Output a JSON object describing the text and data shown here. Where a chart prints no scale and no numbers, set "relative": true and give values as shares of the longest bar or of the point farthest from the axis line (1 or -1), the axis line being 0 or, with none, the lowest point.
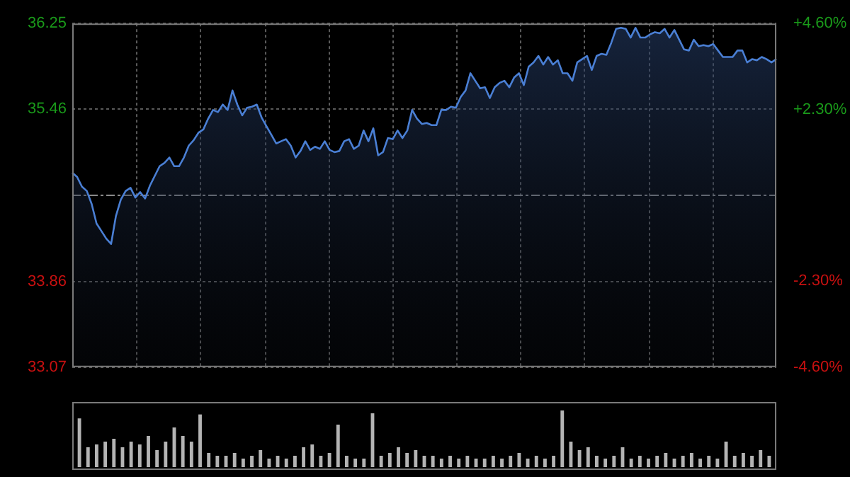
{
  "chart_data": [
    {
      "type": "area",
      "categories": [
        null,
        null,
        null,
        null,
        null,
        null,
        null,
        null,
        null,
        null,
        null,
        null,
        null,
        null,
        null,
        null,
        null,
        null,
        null,
        null,
        null,
        null,
        null,
        null,
        null,
        null,
        null,
        null,
        null,
        null,
        null,
        null,
        null,
        null,
        null,
        null,
        null,
        null,
        null,
        null,
        null,
        null,
        null,
        null,
        null,
        null,
        null,
        null,
        null,
        null,
        null,
        null,
        null,
        null,
        null,
        null,
        null,
        null,
        null,
        null,
        null,
        null,
        null,
        null,
        null,
        null,
        null,
        null,
        null,
        null,
        null,
        null,
        null,
        null,
        null,
        null,
        null,
        null,
        null,
        null,
        null,
        null,
        null,
        null,
        null,
        null,
        null,
        null,
        null,
        null,
        null,
        null,
        null,
        null,
        null,
        null,
        null,
        null,
        null,
        null,
        null,
        null,
        null,
        null,
        null,
        null,
        null,
        null,
        null,
        null,
        null,
        null,
        null,
        null,
        null,
        null,
        null,
        null,
        null,
        null,
        null,
        null,
        null,
        null,
        null,
        null,
        null,
        null,
        null,
        null,
        null,
        null,
        null,
        null,
        null,
        null,
        null,
        null,
        null,
        null,
        null,
        null,
        null,
        null,
        null,
        null
      ],
      "series": [
        {
          "color": "#4a7fd4",
          "values": [
            34.87,
            34.83,
            34.74,
            34.7,
            34.58,
            34.4,
            34.33,
            34.26,
            34.21,
            34.47,
            34.62,
            34.7,
            34.73,
            34.64,
            34.69,
            34.63,
            34.75,
            34.84,
            34.93,
            34.96,
            35.01,
            34.93,
            34.93,
            35.01,
            35.12,
            35.17,
            35.24,
            35.27,
            35.37,
            35.45,
            35.43,
            35.5,
            35.45,
            35.63,
            35.5,
            35.4,
            35.47,
            35.48,
            35.5,
            35.38,
            35.3,
            35.22,
            35.14,
            35.16,
            35.18,
            35.12,
            35.01,
            35.07,
            35.16,
            35.08,
            35.11,
            35.09,
            35.16,
            35.08,
            35.06,
            35.07,
            35.16,
            35.18,
            35.09,
            35.12,
            35.26,
            35.16,
            35.28,
            35.03,
            35.06,
            35.19,
            35.18,
            35.26,
            35.19,
            35.26,
            35.45,
            35.37,
            35.32,
            35.33,
            35.31,
            35.31,
            35.45,
            35.45,
            35.48,
            35.47,
            35.57,
            35.63,
            35.79,
            35.72,
            35.65,
            35.66,
            35.56,
            35.66,
            35.7,
            35.72,
            35.66,
            35.75,
            35.79,
            35.68,
            35.85,
            35.89,
            35.95,
            35.87,
            35.94,
            35.87,
            35.91,
            35.79,
            35.79,
            35.72,
            35.89,
            35.92,
            35.95,
            35.82,
            35.95,
            35.97,
            35.96,
            36.07,
            36.2,
            36.21,
            36.2,
            36.12,
            36.21,
            36.12,
            36.12,
            36.15,
            36.17,
            36.16,
            36.2,
            36.12,
            36.19,
            36.1,
            36.01,
            36.0,
            36.1,
            36.04,
            36.05,
            36.04,
            36.06,
            36.0,
            35.94,
            35.94,
            35.94,
            36.0,
            36.0,
            35.89,
            35.92,
            35.91,
            35.94,
            35.92,
            35.89,
            35.92
          ]
        }
      ],
      "ylim": [
        33.07,
        36.25
      ],
      "yticks": [
        33.07,
        33.86,
        35.46,
        36.25
      ],
      "y2lim": [
        -4.6,
        4.6
      ],
      "y2ticks": [
        {
          "value": -4.6,
          "label": "-4.60%"
        },
        {
          "value": -2.3,
          "label": "-2.30%"
        },
        {
          "value": 2.3,
          "label": "+2.30%"
        },
        {
          "value": 4.6,
          "label": "+4.60%"
        }
      ],
      "ref_lines": [
        {
          "axis": "y",
          "value": 34.66,
          "line_style": "dashed"
        }
      ],
      "grid": true,
      "marker": "none",
      "line_style": "solid",
      "tick_labels": "y",
      "legend": false
    },
    {
      "type": "bar",
      "relative": true,
      "categories": [
        null,
        null,
        null,
        null,
        null,
        null,
        null,
        null,
        null,
        null,
        null,
        null,
        null,
        null,
        null,
        null,
        null,
        null,
        null,
        null,
        null,
        null,
        null,
        null,
        null,
        null,
        null,
        null,
        null,
        null,
        null,
        null,
        null,
        null,
        null,
        null,
        null,
        null,
        null,
        null,
        null,
        null,
        null,
        null,
        null,
        null,
        null,
        null,
        null,
        null,
        null,
        null,
        null,
        null,
        null,
        null,
        null,
        null,
        null,
        null,
        null,
        null,
        null,
        null,
        null,
        null,
        null,
        null,
        null,
        null,
        null,
        null,
        null,
        null,
        null,
        null,
        null,
        null,
        null,
        null,
        null
      ],
      "series": [
        {
          "color": "#b4b4b4",
          "values": [
            0.86,
            0.35,
            0.4,
            0.45,
            0.5,
            0.35,
            0.45,
            0.4,
            0.55,
            0.3,
            0.45,
            0.7,
            0.55,
            0.45,
            0.93,
            0.25,
            0.2,
            0.2,
            0.25,
            0.15,
            0.2,
            0.3,
            0.15,
            0.2,
            0.15,
            0.2,
            0.35,
            0.4,
            0.2,
            0.25,
            0.75,
            0.2,
            0.15,
            0.15,
            0.95,
            0.2,
            0.25,
            0.35,
            0.25,
            0.3,
            0.2,
            0.2,
            0.15,
            0.2,
            0.15,
            0.2,
            0.15,
            0.15,
            0.2,
            0.15,
            0.2,
            0.25,
            0.15,
            0.2,
            0.15,
            0.2,
            1,
            0.45,
            0.3,
            0.35,
            0.2,
            0.15,
            0.2,
            0.35,
            0.15,
            0.2,
            0.15,
            0.2,
            0.25,
            0.15,
            0.2,
            0.25,
            0.15,
            0.2,
            0.15,
            0.45,
            0.2,
            0.25,
            0.2,
            0.3,
            0.2
          ]
        }
      ],
      "legend": false
    }
  ]
}
